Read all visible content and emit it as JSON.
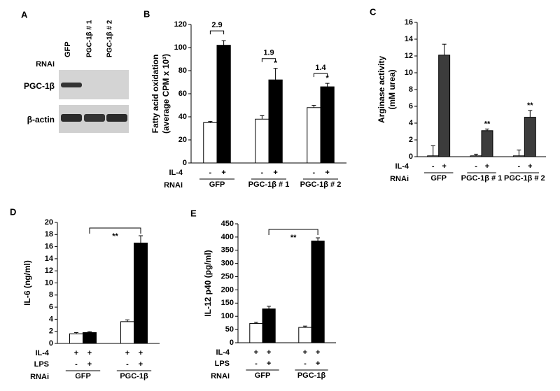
{
  "blot": {
    "panel": "A",
    "rnai_label": "RNAi",
    "lanes": [
      "GFP",
      "PGC-1β # 1",
      "PGC-1β # 2"
    ],
    "rows": [
      "PGC-1β",
      "β-actin"
    ]
  },
  "chart_data": [
    {
      "type": "bar",
      "panel": "B",
      "ylabel": [
        "Fatty acid oxidation",
        "(average CPM x 10³)"
      ],
      "categories": [
        "GFP",
        "PGC-1β # 1",
        "PGC-1β # 2"
      ],
      "series": [
        {
          "color": "#ffffff",
          "values": [
            35,
            38,
            48
          ],
          "errors": [
            1,
            3,
            2
          ]
        },
        {
          "color": "#000000",
          "values": [
            102,
            72,
            66
          ],
          "errors": [
            4,
            10,
            3
          ]
        }
      ],
      "ylim": [
        0,
        120
      ],
      "yticks": [
        0,
        20,
        40,
        60,
        80,
        100,
        120
      ],
      "fold_changes": [
        "2.9",
        "1.9",
        "1.4"
      ],
      "significance": [
        null,
        "*",
        "*"
      ],
      "conditions": [
        {
          "label": "IL-4",
          "marks": [
            "-",
            "+",
            "-",
            "+",
            "-",
            "+"
          ]
        }
      ],
      "rnai_label": "RNAi"
    },
    {
      "type": "bar",
      "panel": "C",
      "ylabel": [
        "Arginase activity",
        "(mM urea)"
      ],
      "categories": [
        "GFP",
        "PGC-1β # 1",
        "PGC-1β # 2"
      ],
      "series": [
        {
          "color": "#ffffff",
          "values": [
            0.1,
            0.1,
            0.1
          ],
          "errors": [
            1.2,
            0.2,
            0.7
          ]
        },
        {
          "color": "#3c3c3c",
          "values": [
            12.1,
            3.1,
            4.7
          ],
          "errors": [
            1.3,
            0.2,
            0.8
          ]
        }
      ],
      "ylim": [
        0,
        16
      ],
      "yticks": [
        0,
        2,
        4,
        6,
        8,
        10,
        12,
        14,
        16
      ],
      "significance": [
        null,
        "**",
        "**"
      ],
      "conditions": [
        {
          "label": "IL-4",
          "marks": [
            "-",
            "+",
            "-",
            "+",
            "-",
            "+"
          ]
        }
      ],
      "rnai_label": "RNAi"
    },
    {
      "type": "bar",
      "panel": "D",
      "ylabel": [
        "IL-6 (ng/ml)"
      ],
      "categories": [
        "GFP",
        "PGC-1β"
      ],
      "series": [
        {
          "color": "#ffffff",
          "values": [
            1.6,
            3.6
          ],
          "errors": [
            0.2,
            0.3
          ]
        },
        {
          "color": "#000000",
          "values": [
            1.8,
            16.6
          ],
          "errors": [
            0.15,
            1.2
          ]
        }
      ],
      "ylim": [
        0,
        20
      ],
      "yticks": [
        0,
        2,
        4,
        6,
        8,
        10,
        12,
        14,
        16,
        18,
        20
      ],
      "bracket": "**",
      "conditions": [
        {
          "label": "IL-4",
          "marks": [
            "+",
            "+",
            "+",
            "+"
          ]
        },
        {
          "label": "LPS",
          "marks": [
            "-",
            "+",
            "-",
            "+"
          ]
        }
      ],
      "rnai_label": "RNAi"
    },
    {
      "type": "bar",
      "panel": "E",
      "ylabel": [
        "IL-12 p40 (pg/ml)"
      ],
      "categories": [
        "GFP",
        "PGC-1β"
      ],
      "series": [
        {
          "color": "#ffffff",
          "values": [
            73,
            58
          ],
          "errors": [
            5,
            5
          ]
        },
        {
          "color": "#000000",
          "values": [
            128,
            385
          ],
          "errors": [
            10,
            12
          ]
        }
      ],
      "ylim": [
        0,
        450
      ],
      "yticks": [
        0,
        50,
        100,
        150,
        200,
        250,
        300,
        350,
        400,
        450
      ],
      "bracket": "**",
      "conditions": [
        {
          "label": "IL-4",
          "marks": [
            "+",
            "+",
            "+",
            "+"
          ]
        },
        {
          "label": "LPS",
          "marks": [
            "-",
            "+",
            "-",
            "+"
          ]
        }
      ],
      "rnai_label": "RNAi"
    }
  ]
}
